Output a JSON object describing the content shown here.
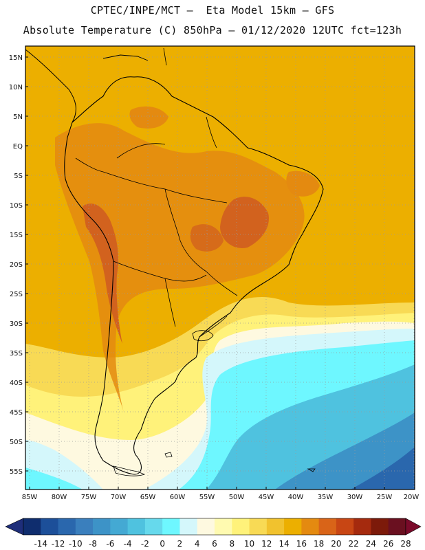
{
  "header": {
    "line1": "CPTEC/INPE/MCT –  Eta Model 15km – GFS",
    "line2": "Absolute Temperature (C) 850hPa – 01/12/2020 12UTC fct=123h"
  },
  "map": {
    "lat_labels": [
      "15N",
      "10N",
      "5N",
      "EQ",
      "5S",
      "10S",
      "15S",
      "20S",
      "25S",
      "30S",
      "35S",
      "40S",
      "45S",
      "50S",
      "55S"
    ],
    "lon_labels": [
      "85W",
      "80W",
      "75W",
      "70W",
      "65W",
      "60W",
      "55W",
      "50W",
      "45W",
      "40W",
      "35W",
      "30W",
      "25W",
      "20W"
    ],
    "colors": {
      "background_field": "#ecaf00",
      "land_warm": "#e48a10",
      "land_hot": "#d2621e",
      "coastline": "#000000",
      "gridline": "#9a9a9a"
    }
  },
  "colorbar": {
    "values": [
      "-14",
      "-12",
      "-10",
      "-8",
      "-6",
      "-4",
      "-2",
      "0",
      "2",
      "4",
      "6",
      "8",
      "10",
      "12",
      "14",
      "16",
      "18",
      "20",
      "22",
      "24",
      "26",
      "28"
    ],
    "colors": [
      "#0f2d6e",
      "#1c4f99",
      "#2a67ad",
      "#3a7fbd",
      "#3d93c7",
      "#44a9d3",
      "#4fc2df",
      "#66d9ec",
      "#6ef7ff",
      "#d4f7fb",
      "#fef9e0",
      "#fffab0",
      "#fff27a",
      "#f8da55",
      "#f1c22e",
      "#ecaf00",
      "#e48a10",
      "#d96418",
      "#c84614",
      "#a52a0e",
      "#7c1a0a",
      "#6a1020"
    ],
    "low_arrow_color": "#1e2e7a",
    "high_arrow_color": "#7a0a2a"
  }
}
